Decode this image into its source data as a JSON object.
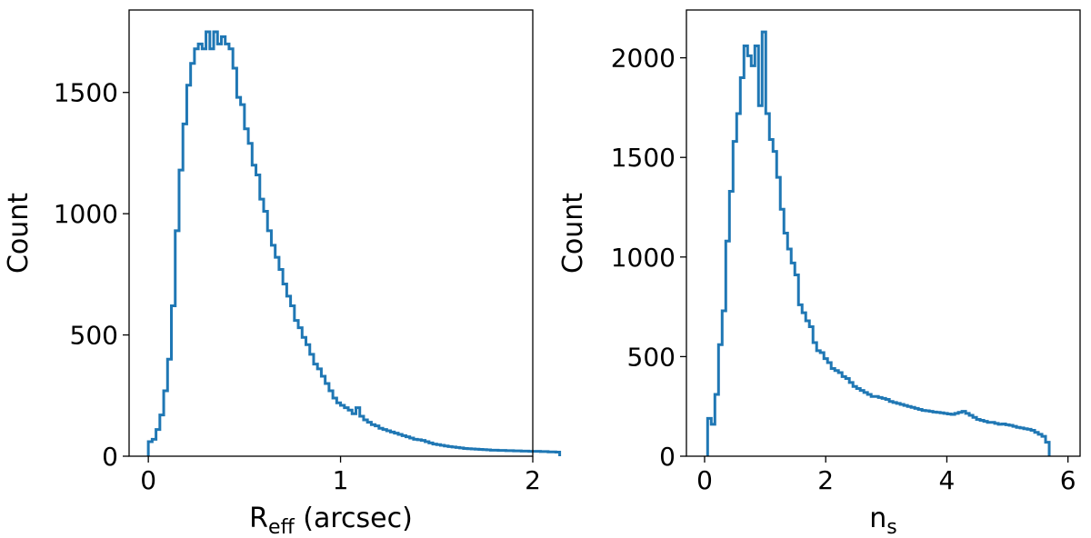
{
  "chart_data": [
    {
      "type": "histogram",
      "xlabel": "R",
      "xlabel_sub": "eff",
      "xlabel_suffix": " (arcsec)",
      "ylabel": "Count",
      "xlim": [
        -0.1,
        2.0
      ],
      "ylim": [
        0,
        1840
      ],
      "xticks": [
        {
          "value": 0,
          "label": "0"
        },
        {
          "value": 1,
          "label": "1"
        },
        {
          "value": 2,
          "label": "2"
        }
      ],
      "yticks": [
        {
          "value": 0,
          "label": "0"
        },
        {
          "value": 500,
          "label": "500"
        },
        {
          "value": 1000,
          "label": "1000"
        },
        {
          "value": 1500,
          "label": "1500"
        }
      ],
      "color": "#1f77b4",
      "bin_start": 0.0,
      "bin_width": 0.02,
      "values": [
        60,
        70,
        110,
        170,
        270,
        400,
        620,
        930,
        1180,
        1370,
        1530,
        1620,
        1680,
        1700,
        1680,
        1750,
        1680,
        1750,
        1700,
        1730,
        1700,
        1680,
        1600,
        1480,
        1450,
        1350,
        1290,
        1200,
        1160,
        1060,
        1010,
        930,
        870,
        820,
        770,
        710,
        660,
        620,
        560,
        530,
        490,
        460,
        420,
        380,
        360,
        330,
        300,
        270,
        240,
        220,
        210,
        200,
        190,
        175,
        200,
        165,
        150,
        140,
        130,
        125,
        115,
        110,
        105,
        100,
        95,
        90,
        85,
        80,
        75,
        70,
        68,
        65,
        60,
        55,
        50,
        48,
        45,
        42,
        40,
        38,
        36,
        34,
        32,
        31,
        30,
        29,
        28,
        27,
        26,
        25,
        25,
        24,
        24,
        23,
        23,
        22,
        22,
        21,
        21,
        20,
        20,
        20,
        19,
        19,
        18,
        18,
        17
      ]
    },
    {
      "type": "histogram",
      "xlabel": "n",
      "xlabel_sub": "s",
      "xlabel_suffix": "",
      "ylabel": "Count",
      "xlim": [
        -0.3,
        6.2
      ],
      "ylim": [
        0,
        2240
      ],
      "xticks": [
        {
          "value": 0,
          "label": "0"
        },
        {
          "value": 2,
          "label": "2"
        },
        {
          "value": 4,
          "label": "4"
        },
        {
          "value": 6,
          "label": "6"
        }
      ],
      "yticks": [
        {
          "value": 0,
          "label": "0"
        },
        {
          "value": 500,
          "label": "500"
        },
        {
          "value": 1000,
          "label": "1000"
        },
        {
          "value": 1500,
          "label": "1500"
        },
        {
          "value": 2000,
          "label": "2000"
        }
      ],
      "color": "#1f77b4",
      "bin_start": 0.05,
      "bin_width": 0.06,
      "values": [
        190,
        160,
        310,
        560,
        730,
        1080,
        1330,
        1580,
        1720,
        1900,
        2060,
        2010,
        1960,
        2060,
        1760,
        2130,
        1720,
        1590,
        1530,
        1400,
        1240,
        1120,
        1040,
        970,
        910,
        760,
        720,
        680,
        650,
        570,
        530,
        520,
        490,
        470,
        440,
        430,
        420,
        400,
        390,
        370,
        350,
        340,
        330,
        320,
        310,
        300,
        300,
        295,
        290,
        285,
        275,
        270,
        265,
        260,
        255,
        250,
        245,
        240,
        235,
        230,
        228,
        225,
        222,
        220,
        218,
        215,
        212,
        210,
        215,
        220,
        225,
        215,
        205,
        195,
        185,
        180,
        175,
        170,
        170,
        165,
        160,
        162,
        158,
        155,
        150,
        145,
        142,
        138,
        135,
        130,
        120,
        110,
        100,
        70
      ]
    }
  ]
}
